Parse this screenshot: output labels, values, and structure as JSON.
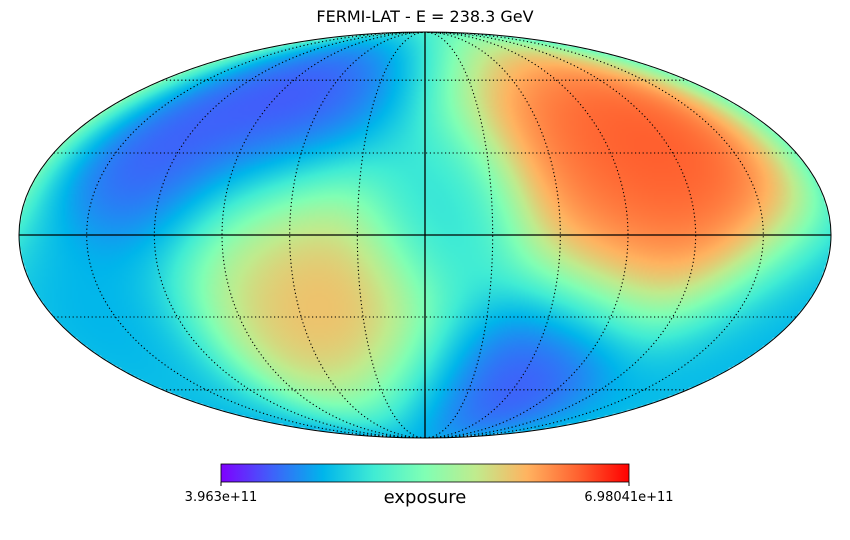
{
  "title": "FERMI-LAT - E = 238.3 GeV",
  "colorbar": {
    "label": "exposure",
    "min_label": "3.963e+11",
    "max_label": "6.98041e+11",
    "min": 396300000000,
    "max": 698041000000,
    "colormap": "rainbow",
    "stops": [
      "#7f00ff",
      "#3f61fa",
      "#00b5eb",
      "#40ecd4",
      "#80ffb4",
      "#c0eb8d",
      "#ffb360",
      "#ff6230",
      "#ff0000"
    ]
  },
  "map": {
    "projection": "mollweide",
    "graticule": {
      "meridians_deg": [
        -150,
        -120,
        -90,
        -60,
        -30,
        0,
        30,
        60,
        90,
        120,
        150
      ],
      "parallels_deg": [
        -60,
        -30,
        0,
        30,
        60
      ],
      "style": "dotted",
      "color": "#000000"
    },
    "axes_lines": {
      "equator": true,
      "central_meridian": true
    },
    "blobs": [
      {
        "lon": -120,
        "lat": 33,
        "level": 1.0,
        "spread": 32
      },
      {
        "lon": -80,
        "lat": 35,
        "level": 0.92,
        "spread": 30
      },
      {
        "lon": 45,
        "lat": -30,
        "level": 0.82,
        "spread": 28
      },
      {
        "lon": 75,
        "lat": 62,
        "level": 0.0,
        "spread": 26
      },
      {
        "lon": 140,
        "lat": 30,
        "level": 0.04,
        "spread": 22
      },
      {
        "lon": -50,
        "lat": -60,
        "level": 0.0,
        "spread": 24
      },
      {
        "lon": -10,
        "lat": 10,
        "level": 0.28,
        "spread": 20
      },
      {
        "lon": 160,
        "lat": -30,
        "level": 0.2,
        "spread": 22
      },
      {
        "lon": -170,
        "lat": -40,
        "level": 0.25,
        "spread": 22
      }
    ],
    "background_level": 0.42
  }
}
